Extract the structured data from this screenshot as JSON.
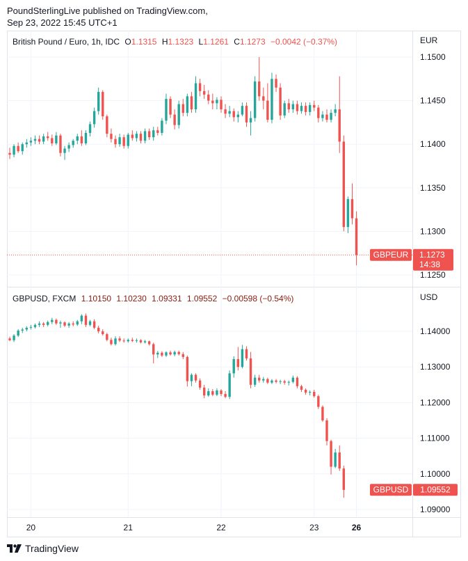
{
  "header": {
    "line1": "PoundSterlingLive published on TradingView.com,",
    "line2": "Sep 23, 2022 15:45 UTC+1"
  },
  "footer": {
    "brand": "TradingView",
    "logo_icon": "tradingview-logo-icon"
  },
  "colors": {
    "up": "#26a69a",
    "down": "#ef5350",
    "grid": "#f0f3fa",
    "border": "#e0e3eb",
    "text": "#131722",
    "red_text": "#ef5350",
    "dark_red_text": "#8a1c12"
  },
  "chart_data": [
    {
      "type": "candlestick",
      "name": "gbpeur",
      "legend": {
        "symbol": "British Pound / Euro, 1h, IDC",
        "o_label": "O",
        "o": "1.1315",
        "h_label": "H",
        "h": "1.1323",
        "l_label": "L",
        "l": "1.1261",
        "c_label": "C",
        "c": "1.1273",
        "change": "−0.0042 (−0.37%)"
      },
      "currency": "EUR",
      "ylim": [
        1.124,
        1.1525
      ],
      "yticks": [
        "1.1500",
        "1.1450",
        "1.1400",
        "1.1350",
        "1.1300",
        "1.1250"
      ],
      "price_tag": {
        "symbol": "GBPEUR",
        "value": "1.1273",
        "countdown": "14:38"
      },
      "last_price": 1.1273,
      "grid": true,
      "candles": [
        [
          1.139,
          1.1396,
          1.1383,
          1.1388
        ],
        [
          1.1388,
          1.14,
          1.1385,
          1.1398
        ],
        [
          1.1398,
          1.1402,
          1.139,
          1.1392
        ],
        [
          1.1392,
          1.1402,
          1.1388,
          1.14
        ],
        [
          1.14,
          1.1406,
          1.1396,
          1.1402
        ],
        [
          1.1402,
          1.1408,
          1.1398,
          1.1404
        ],
        [
          1.1404,
          1.141,
          1.14,
          1.1406
        ],
        [
          1.1406,
          1.141,
          1.14,
          1.1403
        ],
        [
          1.1403,
          1.1412,
          1.14,
          1.1409
        ],
        [
          1.1409,
          1.1414,
          1.1404,
          1.1407
        ],
        [
          1.1407,
          1.1411,
          1.1398,
          1.1401
        ],
        [
          1.1401,
          1.1414,
          1.1399,
          1.141
        ],
        [
          1.141,
          1.1412,
          1.1386,
          1.139
        ],
        [
          1.139,
          1.1398,
          1.1382,
          1.1395
        ],
        [
          1.1395,
          1.1402,
          1.1391,
          1.1399
        ],
        [
          1.1399,
          1.1406,
          1.1396,
          1.1404
        ],
        [
          1.1404,
          1.1412,
          1.14,
          1.1409
        ],
        [
          1.1409,
          1.1416,
          1.1398,
          1.1401
        ],
        [
          1.1401,
          1.1416,
          1.1399,
          1.1413
        ],
        [
          1.1413,
          1.1426,
          1.1409,
          1.1423
        ],
        [
          1.1423,
          1.1442,
          1.1419,
          1.1438
        ],
        [
          1.1438,
          1.1465,
          1.1434,
          1.146
        ],
        [
          1.146,
          1.1462,
          1.1428,
          1.1432
        ],
        [
          1.1432,
          1.1434,
          1.1408,
          1.1412
        ],
        [
          1.1412,
          1.1418,
          1.1402,
          1.1406
        ],
        [
          1.1406,
          1.141,
          1.1396,
          1.14
        ],
        [
          1.14,
          1.1412,
          1.1397,
          1.1408
        ],
        [
          1.1408,
          1.1411,
          1.1395,
          1.1398
        ],
        [
          1.1398,
          1.1413,
          1.1395,
          1.1411
        ],
        [
          1.1411,
          1.1416,
          1.1404,
          1.1407
        ],
        [
          1.1407,
          1.1415,
          1.1403,
          1.1412
        ],
        [
          1.1412,
          1.1415,
          1.1401,
          1.1404
        ],
        [
          1.1404,
          1.1418,
          1.1401,
          1.1415
        ],
        [
          1.1415,
          1.1418,
          1.1405,
          1.1408
        ],
        [
          1.1408,
          1.142,
          1.1404,
          1.1416
        ],
        [
          1.1416,
          1.142,
          1.141,
          1.1413
        ],
        [
          1.1413,
          1.143,
          1.141,
          1.1427
        ],
        [
          1.1427,
          1.1458,
          1.1423,
          1.1452
        ],
        [
          1.1452,
          1.1455,
          1.143,
          1.1434
        ],
        [
          1.1434,
          1.144,
          1.1417,
          1.1422
        ],
        [
          1.1422,
          1.145,
          1.1418,
          1.1446
        ],
        [
          1.1446,
          1.1452,
          1.1432,
          1.1436
        ],
        [
          1.1436,
          1.1458,
          1.1432,
          1.1455
        ],
        [
          1.1455,
          1.146,
          1.1436,
          1.144
        ],
        [
          1.144,
          1.1478,
          1.1436,
          1.147
        ],
        [
          1.147,
          1.1475,
          1.1455,
          1.1461
        ],
        [
          1.1461,
          1.1468,
          1.1452,
          1.1457
        ],
        [
          1.1457,
          1.1462,
          1.1446,
          1.145
        ],
        [
          1.145,
          1.1458,
          1.144,
          1.1447
        ],
        [
          1.1447,
          1.1454,
          1.144,
          1.1451
        ],
        [
          1.1451,
          1.1455,
          1.1436,
          1.144
        ],
        [
          1.144,
          1.1446,
          1.143,
          1.1435
        ],
        [
          1.1435,
          1.1444,
          1.1431,
          1.1438
        ],
        [
          1.1438,
          1.1441,
          1.1426,
          1.1431
        ],
        [
          1.1431,
          1.1438,
          1.1425,
          1.1434
        ],
        [
          1.1434,
          1.1448,
          1.1432,
          1.1444
        ],
        [
          1.1444,
          1.1448,
          1.142,
          1.1425
        ],
        [
          1.1425,
          1.1438,
          1.141,
          1.143
        ],
        [
          1.143,
          1.1478,
          1.1426,
          1.1472
        ],
        [
          1.1472,
          1.15,
          1.145,
          1.1455
        ],
        [
          1.1455,
          1.1465,
          1.144,
          1.145
        ],
        [
          1.145,
          1.147,
          1.1425,
          1.1428
        ],
        [
          1.1428,
          1.1482,
          1.1424,
          1.1475
        ],
        [
          1.1475,
          1.148,
          1.146,
          1.1465
        ],
        [
          1.1465,
          1.147,
          1.1428,
          1.1433
        ],
        [
          1.1433,
          1.145,
          1.143,
          1.1447
        ],
        [
          1.1447,
          1.1452,
          1.1436,
          1.144
        ],
        [
          1.144,
          1.145,
          1.1436,
          1.1446
        ],
        [
          1.1446,
          1.145,
          1.1434,
          1.1438
        ],
        [
          1.1438,
          1.1448,
          1.1435,
          1.1444
        ],
        [
          1.1444,
          1.1448,
          1.1433,
          1.1437
        ],
        [
          1.1437,
          1.1448,
          1.1433,
          1.1445
        ],
        [
          1.1445,
          1.145,
          1.1438,
          1.1442
        ],
        [
          1.1442,
          1.1445,
          1.1425,
          1.143
        ],
        [
          1.143,
          1.1438,
          1.1426,
          1.1434
        ],
        [
          1.1434,
          1.144,
          1.1425,
          1.1428
        ],
        [
          1.1428,
          1.144,
          1.1425,
          1.1436
        ],
        [
          1.1436,
          1.1446,
          1.1432,
          1.144
        ],
        [
          1.144,
          1.1478,
          1.139,
          1.1403
        ],
        [
          1.1403,
          1.141,
          1.13,
          1.1305
        ],
        [
          1.1305,
          1.134,
          1.1298,
          1.1337
        ],
        [
          1.1337,
          1.1355,
          1.1308,
          1.1315
        ],
        [
          1.1315,
          1.1323,
          1.1261,
          1.1273
        ]
      ],
      "xticks": [
        {
          "label": "20",
          "index": 5
        },
        {
          "label": "21",
          "index": 28
        },
        {
          "label": "22",
          "index": 50
        },
        {
          "label": "23",
          "index": 72
        }
      ]
    },
    {
      "type": "candlestick",
      "name": "gbpusd",
      "legend": {
        "symbol": "GBPUSD, FXCM",
        "o": "1.10150",
        "h": "1.10230",
        "l": "1.09331",
        "c": "1.09552",
        "change": "−0.00598 (−0.54%)"
      },
      "currency": "USD",
      "ylim": [
        1.088,
        1.1505
      ],
      "yticks": [
        "1.14000",
        "1.13000",
        "1.12000",
        "1.11000",
        "1.10000",
        "1.09000"
      ],
      "price_tag": {
        "symbol": "GBPUSD",
        "value": "1.09552"
      },
      "last_price": 1.09552,
      "grid": true,
      "candles": [
        [
          1.138,
          1.1385,
          1.1372,
          1.1375
        ],
        [
          1.1375,
          1.1392,
          1.137,
          1.1388
        ],
        [
          1.1388,
          1.1406,
          1.1384,
          1.1402
        ],
        [
          1.1402,
          1.141,
          1.1395,
          1.1405
        ],
        [
          1.1405,
          1.1414,
          1.14,
          1.141
        ],
        [
          1.141,
          1.1418,
          1.1405,
          1.1412
        ],
        [
          1.1412,
          1.1422,
          1.1408,
          1.1418
        ],
        [
          1.1418,
          1.1428,
          1.1412,
          1.1422
        ],
        [
          1.1422,
          1.1426,
          1.1412,
          1.1418
        ],
        [
          1.1418,
          1.143,
          1.1414,
          1.1426
        ],
        [
          1.1426,
          1.1438,
          1.142,
          1.1432
        ],
        [
          1.1432,
          1.1436,
          1.1418,
          1.1422
        ],
        [
          1.1422,
          1.143,
          1.141,
          1.1425
        ],
        [
          1.1425,
          1.1428,
          1.1412,
          1.1416
        ],
        [
          1.1416,
          1.1426,
          1.141,
          1.1422
        ],
        [
          1.1422,
          1.1428,
          1.1414,
          1.1419
        ],
        [
          1.1419,
          1.1432,
          1.1415,
          1.1428
        ],
        [
          1.1428,
          1.1448,
          1.142,
          1.1444
        ],
        [
          1.1444,
          1.145,
          1.1412,
          1.1418
        ],
        [
          1.1418,
          1.1432,
          1.1414,
          1.1428
        ],
        [
          1.1428,
          1.1434,
          1.1406,
          1.141
        ],
        [
          1.141,
          1.1416,
          1.1394,
          1.14
        ],
        [
          1.14,
          1.1406,
          1.1388,
          1.1392
        ],
        [
          1.1392,
          1.1396,
          1.1372,
          1.1376
        ],
        [
          1.1376,
          1.1382,
          1.136,
          1.1364
        ],
        [
          1.1364,
          1.1386,
          1.136,
          1.138
        ],
        [
          1.138,
          1.1386,
          1.137,
          1.1374
        ],
        [
          1.1374,
          1.138,
          1.1368,
          1.1372
        ],
        [
          1.1372,
          1.138,
          1.1368,
          1.1376
        ],
        [
          1.1376,
          1.1382,
          1.137,
          1.1373
        ],
        [
          1.1373,
          1.138,
          1.1368,
          1.1375
        ],
        [
          1.1375,
          1.1378,
          1.1366,
          1.1369
        ],
        [
          1.1369,
          1.1376,
          1.1366,
          1.1372
        ],
        [
          1.1372,
          1.1374,
          1.136,
          1.1364
        ],
        [
          1.1364,
          1.1368,
          1.131,
          1.1335
        ],
        [
          1.1335,
          1.1345,
          1.1325,
          1.134
        ],
        [
          1.134,
          1.1344,
          1.1328,
          1.1332
        ],
        [
          1.1332,
          1.1344,
          1.1328,
          1.1341
        ],
        [
          1.1341,
          1.1346,
          1.1332,
          1.1335
        ],
        [
          1.1335,
          1.1346,
          1.133,
          1.1342
        ],
        [
          1.1342,
          1.1346,
          1.1332,
          1.1336
        ],
        [
          1.1336,
          1.1342,
          1.1322,
          1.1328
        ],
        [
          1.1328,
          1.1332,
          1.1245,
          1.126
        ],
        [
          1.126,
          1.1282,
          1.1246,
          1.1278
        ],
        [
          1.1278,
          1.1282,
          1.1256,
          1.1262
        ],
        [
          1.1262,
          1.1268,
          1.1236,
          1.1242
        ],
        [
          1.1242,
          1.125,
          1.1212,
          1.122
        ],
        [
          1.122,
          1.124,
          1.1216,
          1.1232
        ],
        [
          1.1232,
          1.1238,
          1.1218,
          1.1222
        ],
        [
          1.1222,
          1.124,
          1.1218,
          1.1234
        ],
        [
          1.1234,
          1.1238,
          1.1218,
          1.1224
        ],
        [
          1.1224,
          1.1232,
          1.1212,
          1.1216
        ],
        [
          1.1216,
          1.129,
          1.121,
          1.1282
        ],
        [
          1.1282,
          1.133,
          1.127,
          1.1322
        ],
        [
          1.1322,
          1.1356,
          1.129,
          1.13
        ],
        [
          1.13,
          1.1362,
          1.1296,
          1.135
        ],
        [
          1.135,
          1.1358,
          1.1318,
          1.1324
        ],
        [
          1.1324,
          1.1342,
          1.124,
          1.125
        ],
        [
          1.125,
          1.1278,
          1.1244,
          1.127
        ],
        [
          1.127,
          1.1278,
          1.1256,
          1.1262
        ],
        [
          1.1262,
          1.1272,
          1.1256,
          1.1266
        ],
        [
          1.1266,
          1.127,
          1.1252,
          1.1256
        ],
        [
          1.1256,
          1.1266,
          1.1252,
          1.1262
        ],
        [
          1.1262,
          1.1266,
          1.1254,
          1.1258
        ],
        [
          1.1258,
          1.1264,
          1.1252,
          1.126
        ],
        [
          1.126,
          1.1264,
          1.125,
          1.1256
        ],
        [
          1.1256,
          1.1262,
          1.1248,
          1.1258
        ],
        [
          1.1258,
          1.1276,
          1.1254,
          1.127
        ],
        [
          1.127,
          1.1274,
          1.124,
          1.1246
        ],
        [
          1.1246,
          1.125,
          1.123,
          1.1236
        ],
        [
          1.1236,
          1.124,
          1.1222,
          1.1228
        ],
        [
          1.1228,
          1.1234,
          1.122,
          1.123
        ],
        [
          1.123,
          1.1236,
          1.1214,
          1.1218
        ],
        [
          1.1218,
          1.1222,
          1.1182,
          1.1188
        ],
        [
          1.1188,
          1.1192,
          1.1146,
          1.115
        ],
        [
          1.115,
          1.1156,
          1.108,
          1.1092
        ],
        [
          1.1092,
          1.1096,
          1.0998,
          1.102
        ],
        [
          1.102,
          1.107,
          1.1016,
          1.106
        ],
        [
          1.106,
          1.108,
          1.1008,
          1.1015
        ],
        [
          1.1015,
          1.1023,
          1.0933,
          1.0955
        ]
      ],
      "xticks": [
        {
          "label": "20",
          "index": 5
        },
        {
          "label": "21",
          "index": 28
        },
        {
          "label": "22",
          "index": 50
        },
        {
          "label": "23",
          "index": 72
        },
        {
          "label": "26",
          "index": 82
        }
      ]
    }
  ]
}
